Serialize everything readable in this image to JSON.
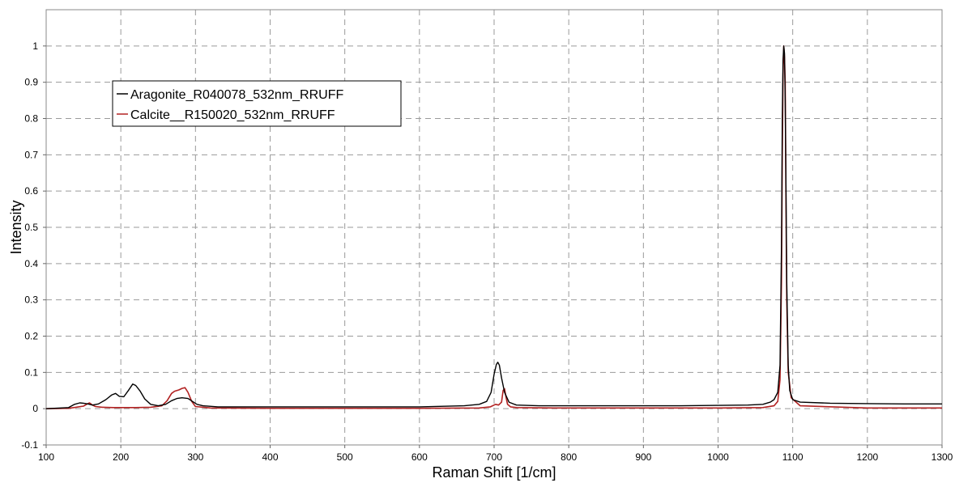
{
  "chart_data": {
    "type": "line",
    "title": "",
    "xlabel": "Raman Shift [1/cm]",
    "ylabel": "Intensity",
    "xlim": [
      100,
      1300
    ],
    "ylim": [
      -0.1,
      1.1
    ],
    "xticks": [
      100,
      200,
      300,
      400,
      500,
      600,
      700,
      800,
      900,
      1000,
      1100,
      1200,
      1300
    ],
    "yticks": [
      -0.1,
      0,
      0.1,
      0.2,
      0.3,
      0.4,
      0.5,
      0.6,
      0.7,
      0.8,
      0.9,
      1
    ],
    "xtick_labels": [
      "100",
      "200",
      "300",
      "400",
      "500",
      "600",
      "700",
      "800",
      "900",
      "1000",
      "1100",
      "1200",
      "1300"
    ],
    "ytick_labels": [
      "-0.1",
      "0",
      "0.1",
      "0.2",
      "0.3",
      "0.4",
      "0.5",
      "0.6",
      "0.7",
      "0.8",
      "0.9",
      "1"
    ],
    "grid": true,
    "legend_position": "top-left",
    "series": [
      {
        "name": "Aragonite_R040078_532nm_RRUFF",
        "color": "#000000",
        "x": [
          100,
          130,
          138,
          145,
          150,
          156,
          162,
          170,
          180,
          188,
          193,
          198,
          204,
          210,
          216,
          220,
          226,
          232,
          240,
          250,
          260,
          268,
          275,
          282,
          290,
          296,
          302,
          310,
          330,
          400,
          500,
          600,
          660,
          680,
          690,
          696,
          700,
          703,
          705,
          707,
          710,
          714,
          720,
          730,
          760,
          850,
          950,
          1000,
          1040,
          1060,
          1070,
          1075,
          1080,
          1083,
          1085,
          1086,
          1087,
          1088,
          1089,
          1090,
          1091,
          1092,
          1094,
          1096,
          1100,
          1110,
          1150,
          1200,
          1250,
          1300
        ],
        "y": [
          0.0,
          0.003,
          0.012,
          0.016,
          0.015,
          0.013,
          0.01,
          0.013,
          0.025,
          0.038,
          0.042,
          0.034,
          0.033,
          0.05,
          0.068,
          0.064,
          0.048,
          0.027,
          0.012,
          0.008,
          0.012,
          0.022,
          0.028,
          0.03,
          0.028,
          0.02,
          0.012,
          0.008,
          0.005,
          0.005,
          0.005,
          0.005,
          0.008,
          0.012,
          0.02,
          0.045,
          0.095,
          0.122,
          0.128,
          0.12,
          0.085,
          0.045,
          0.018,
          0.01,
          0.008,
          0.008,
          0.008,
          0.009,
          0.01,
          0.012,
          0.018,
          0.025,
          0.045,
          0.12,
          0.45,
          0.8,
          0.96,
          1.0,
          0.98,
          0.85,
          0.6,
          0.35,
          0.12,
          0.05,
          0.025,
          0.018,
          0.015,
          0.014,
          0.013,
          0.013
        ]
      },
      {
        "name": "Calcite__R150020_532nm_RRUFF",
        "color": "#b22222",
        "x": [
          100,
          130,
          140,
          150,
          155,
          158,
          162,
          166,
          175,
          190,
          220,
          240,
          255,
          262,
          268,
          272,
          278,
          282,
          286,
          290,
          295,
          300,
          320,
          400,
          500,
          600,
          680,
          695,
          702,
          706,
          710,
          712,
          714,
          716,
          718,
          722,
          730,
          780,
          900,
          1000,
          1060,
          1075,
          1080,
          1083,
          1085,
          1086,
          1087,
          1088,
          1089,
          1090,
          1091,
          1092,
          1094,
          1098,
          1110,
          1200,
          1300
        ],
        "y": [
          0.0,
          0.001,
          0.004,
          0.007,
          0.013,
          0.016,
          0.01,
          0.006,
          0.004,
          0.003,
          0.003,
          0.004,
          0.008,
          0.022,
          0.042,
          0.048,
          0.052,
          0.056,
          0.058,
          0.045,
          0.02,
          0.006,
          0.002,
          0.001,
          0.001,
          0.001,
          0.002,
          0.005,
          0.012,
          0.01,
          0.018,
          0.05,
          0.055,
          0.032,
          0.012,
          0.005,
          0.003,
          0.002,
          0.002,
          0.002,
          0.003,
          0.008,
          0.02,
          0.08,
          0.35,
          0.7,
          0.92,
          1.0,
          0.97,
          0.9,
          0.55,
          0.3,
          0.1,
          0.03,
          0.008,
          0.002,
          0.002
        ]
      }
    ]
  }
}
